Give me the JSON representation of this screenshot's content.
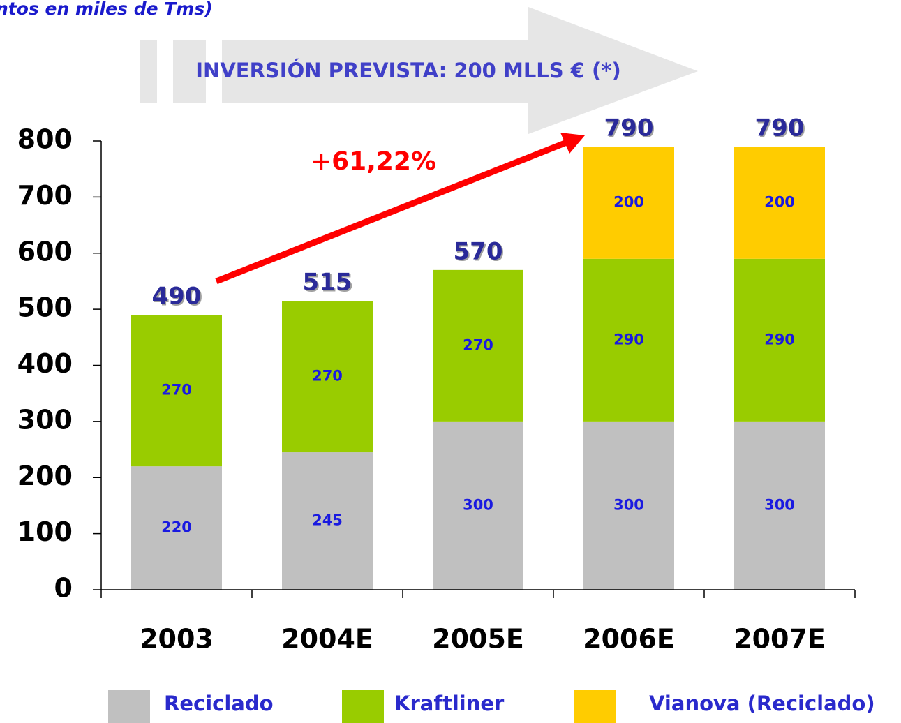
{
  "chart_data": {
    "type": "stacked_bar",
    "title": "ntos en miles de Tms)",
    "subtitle": "INVERSIÓN PREVISTA: 200 MLLS € (*)",
    "annotation": "+61,22%",
    "categories": [
      "2003",
      "2004E",
      "2005E",
      "2006E",
      "2007E"
    ],
    "series": [
      {
        "name": "Reciclado",
        "color": "#c0c0c0",
        "values": [
          220,
          245,
          300,
          300,
          300
        ]
      },
      {
        "name": "Kraftliner",
        "color": "#99cc00",
        "values": [
          270,
          270,
          270,
          290,
          290
        ]
      },
      {
        "name": "Vianova (Reciclado)",
        "color": "#ffcc00",
        "values": [
          null,
          null,
          null,
          200,
          200
        ]
      }
    ],
    "totals": [
      490,
      515,
      570,
      790,
      790
    ],
    "ylim": [
      0,
      800
    ],
    "yticks": [
      0,
      100,
      200,
      300,
      400,
      500,
      600,
      700,
      800
    ],
    "grid": false,
    "legend": "bottom"
  }
}
